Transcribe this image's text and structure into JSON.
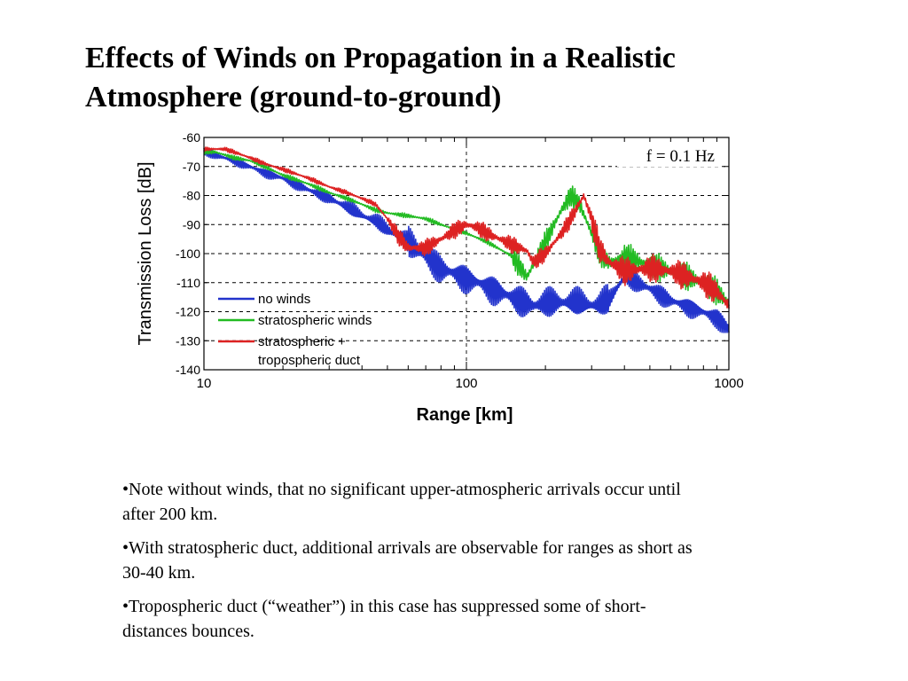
{
  "slide": {
    "title_lines": [
      "Effects of Winds on Propagation in a Realistic",
      "Atmosphere (ground-to-ground)"
    ]
  },
  "chart_data": {
    "type": "line",
    "x_scale": "log",
    "xlabel": "Range [km]",
    "ylabel": "Transmission Loss [dB]",
    "xlim": [
      10,
      1000
    ],
    "ylim": [
      -140,
      -60
    ],
    "x_ticks": [
      10,
      100,
      1000
    ],
    "x_tick_labels": [
      "10",
      "100",
      "1000"
    ],
    "y_ticks": [
      -60,
      -70,
      -80,
      -90,
      -100,
      -110,
      -120,
      -130,
      -140
    ],
    "y_tick_labels": [
      "-60",
      "-70",
      "-80",
      "-90",
      "-100",
      "-110",
      "-120",
      "-130",
      "-140"
    ],
    "grid": true,
    "annotation": "f = 0.1 Hz",
    "legend_position": "bottom-left",
    "series": [
      {
        "name": "no winds",
        "legend_lines": [
          "no winds"
        ],
        "color": "#2233cc",
        "x": [
          10,
          11,
          12,
          13,
          15,
          17,
          20,
          25,
          30,
          35,
          40,
          45,
          50,
          60,
          70,
          80,
          100,
          120,
          150,
          180,
          200,
          250,
          300,
          320,
          350,
          400,
          500,
          600,
          700,
          800,
          900,
          1000
        ],
        "values": [
          -65,
          -66,
          -67,
          -68,
          -70,
          -72,
          -74,
          -78,
          -81,
          -84,
          -87,
          -89,
          -92,
          -96,
          -101,
          -105,
          -108,
          -111,
          -115,
          -118,
          -117,
          -117,
          -118,
          -118,
          -116,
          -108,
          -112,
          -116,
          -118,
          -120,
          -122,
          -126
        ]
      },
      {
        "name": "stratospheric winds",
        "legend_lines": [
          "stratospheric winds"
        ],
        "color": "#22bb22",
        "x": [
          10,
          11,
          12,
          13,
          15,
          17,
          20,
          25,
          30,
          35,
          40,
          45,
          50,
          60,
          70,
          80,
          100,
          120,
          150,
          170,
          200,
          230,
          250,
          270,
          300,
          320,
          350,
          400,
          500,
          600,
          700,
          800,
          900,
          1000
        ],
        "values": [
          -65,
          -65,
          -66,
          -67,
          -68,
          -70,
          -73,
          -76,
          -79,
          -81,
          -83,
          -85,
          -86,
          -87,
          -88,
          -90,
          -93,
          -96,
          -101,
          -108,
          -96,
          -85,
          -80,
          -83,
          -93,
          -100,
          -103,
          -101,
          -104,
          -106,
          -108,
          -110,
          -113,
          -117
        ]
      },
      {
        "name": "stratospheric + tropospheric duct",
        "legend_lines": [
          "stratospheric +",
          "tropospheric duct"
        ],
        "color": "#dd2222",
        "x": [
          10,
          11,
          12,
          13,
          15,
          17,
          20,
          25,
          30,
          35,
          40,
          45,
          50,
          55,
          60,
          70,
          80,
          90,
          100,
          110,
          120,
          150,
          170,
          180,
          200,
          230,
          250,
          280,
          300,
          320,
          350,
          400,
          500,
          600,
          700,
          800,
          900,
          1000
        ],
        "values": [
          -64,
          -64,
          -64,
          -65,
          -67,
          -69,
          -71,
          -74,
          -77,
          -79,
          -81,
          -83,
          -88,
          -94,
          -98,
          -98,
          -95,
          -92,
          -90,
          -91,
          -93,
          -97,
          -99,
          -103,
          -100,
          -93,
          -88,
          -80,
          -88,
          -98,
          -103,
          -106,
          -105,
          -106,
          -108,
          -110,
          -113,
          -118
        ]
      }
    ]
  },
  "notes": [
    "•Note without winds, that no significant upper-atmospheric arrivals occur until after 200 km.",
    "•With stratospheric duct, additional arrivals are observable for ranges as short as 30-40 km.",
    "•Tropospheric duct (“weather”) in this case has suppressed some of short-distances bounces."
  ]
}
